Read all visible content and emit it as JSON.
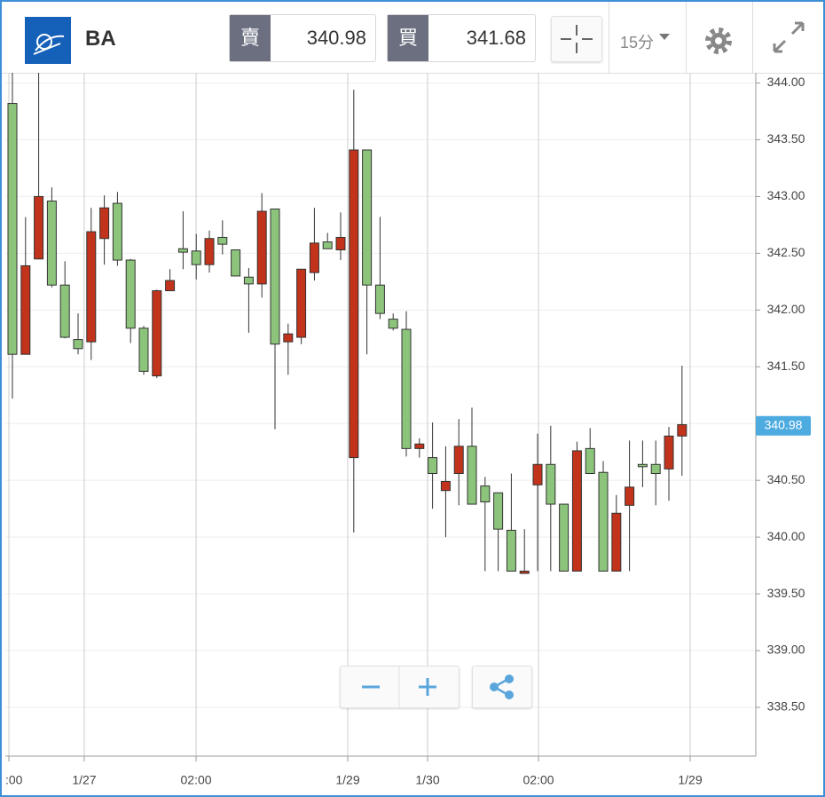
{
  "header": {
    "symbol": "BA",
    "sell_label": "賣",
    "sell_price": 340.98,
    "buy_label": "買",
    "buy_price": 341.68,
    "interval": "15分"
  },
  "chart_data": {
    "type": "candlestick",
    "x": [
      0,
      1,
      2,
      3,
      4,
      5,
      6,
      7,
      8,
      9,
      10,
      11,
      12,
      13,
      14,
      15,
      16,
      17,
      18,
      19,
      20,
      21,
      22,
      23,
      24,
      25,
      26,
      27,
      28,
      29,
      30,
      31,
      32,
      33,
      34,
      35,
      36,
      37,
      38,
      39,
      40,
      41,
      42,
      43,
      44,
      45,
      46,
      47,
      48,
      49,
      50,
      51
    ],
    "open": [
      341.61,
      342.39,
      343.0,
      342.22,
      341.76,
      341.66,
      342.69,
      342.9,
      342.44,
      341.84,
      341.46,
      342.17,
      342.26,
      342.51,
      342.4,
      342.63,
      342.58,
      342.3,
      342.23,
      342.87,
      341.7,
      341.79,
      342.36,
      342.59,
      342.54,
      342.64,
      343.41,
      342.22,
      341.97,
      341.84,
      340.78,
      340.82,
      340.56,
      340.49,
      340.8,
      340.29,
      340.31,
      340.07,
      339.7,
      339.7,
      340.64,
      340.29,
      339.7,
      340.76,
      340.56,
      339.7,
      340.21,
      340.44,
      340.62,
      340.56,
      340.89,
      340.99
    ],
    "high": [
      344.1,
      342.82,
      344.1,
      343.08,
      342.43,
      341.97,
      342.9,
      343.01,
      343.04,
      342.45,
      341.86,
      342.18,
      342.36,
      342.87,
      342.67,
      342.7,
      342.79,
      342.53,
      342.37,
      343.03,
      342.89,
      341.88,
      342.36,
      342.9,
      342.68,
      342.86,
      343.94,
      343.41,
      342.82,
      341.97,
      341.99,
      340.87,
      341.01,
      340.8,
      341.04,
      341.14,
      340.53,
      340.39,
      340.56,
      340.07,
      340.91,
      340.98,
      340.29,
      340.84,
      340.96,
      340.67,
      340.37,
      340.85,
      340.85,
      340.85,
      340.97,
      341.51
    ],
    "low": [
      341.22,
      341.61,
      342.45,
      342.2,
      341.75,
      341.61,
      341.56,
      342.4,
      342.39,
      341.71,
      341.43,
      341.4,
      342.17,
      342.36,
      342.27,
      342.33,
      342.49,
      342.3,
      341.8,
      342.11,
      340.95,
      341.43,
      341.7,
      342.26,
      342.54,
      342.44,
      340.04,
      341.61,
      341.92,
      341.82,
      340.71,
      340.7,
      340.25,
      340.0,
      340.28,
      340.29,
      339.7,
      339.7,
      339.7,
      339.68,
      339.7,
      339.7,
      339.7,
      339.7,
      340.56,
      339.7,
      339.7,
      339.7,
      340.44,
      340.28,
      340.32,
      340.54
    ],
    "close": [
      343.82,
      341.61,
      342.45,
      342.96,
      342.22,
      341.74,
      341.72,
      342.63,
      342.94,
      342.44,
      341.84,
      341.42,
      342.17,
      342.54,
      342.52,
      342.4,
      342.64,
      342.53,
      342.29,
      342.23,
      342.89,
      341.72,
      341.76,
      342.33,
      342.6,
      342.53,
      340.7,
      343.41,
      342.22,
      341.92,
      341.83,
      340.78,
      340.7,
      340.41,
      340.56,
      340.8,
      340.45,
      340.39,
      340.06,
      339.68,
      340.46,
      340.64,
      340.29,
      339.7,
      340.78,
      340.57,
      339.7,
      340.28,
      340.64,
      340.64,
      340.6,
      340.89
    ],
    "up_color": "#8cc47c",
    "down_color": "#c1331b",
    "xlim": [
      -0.54,
      56.62
    ],
    "xticks": [
      {
        "value": -0.27,
        "label": ":00"
      },
      {
        "value": 5.47,
        "label": "1/27"
      },
      {
        "value": 13.99,
        "label": "02:00"
      },
      {
        "value": 25.54,
        "label": "1/29"
      },
      {
        "value": 31.62,
        "label": "1/30"
      },
      {
        "value": 40.07,
        "label": "02:00"
      },
      {
        "value": 51.62,
        "label": "1/29"
      }
    ],
    "ylim": [
      338.07,
      344.09
    ],
    "yticks": [
      {
        "value": 338.5,
        "label": "338.50"
      },
      {
        "value": 339,
        "label": "339.00"
      },
      {
        "value": 339.5,
        "label": "339.50"
      },
      {
        "value": 340,
        "label": "340.00"
      },
      {
        "value": 340.5,
        "label": "340.50"
      },
      {
        "value": 341,
        "label": "341.00"
      },
      {
        "value": 341.5,
        "label": "341.50"
      },
      {
        "value": 342,
        "label": "342.00"
      },
      {
        "value": 342.5,
        "label": "342.50"
      },
      {
        "value": 343,
        "label": "343.00"
      },
      {
        "value": 343.5,
        "label": "343.50"
      },
      {
        "value": 344,
        "label": "344.00"
      }
    ],
    "last_price": 340.98,
    "grid": true
  }
}
